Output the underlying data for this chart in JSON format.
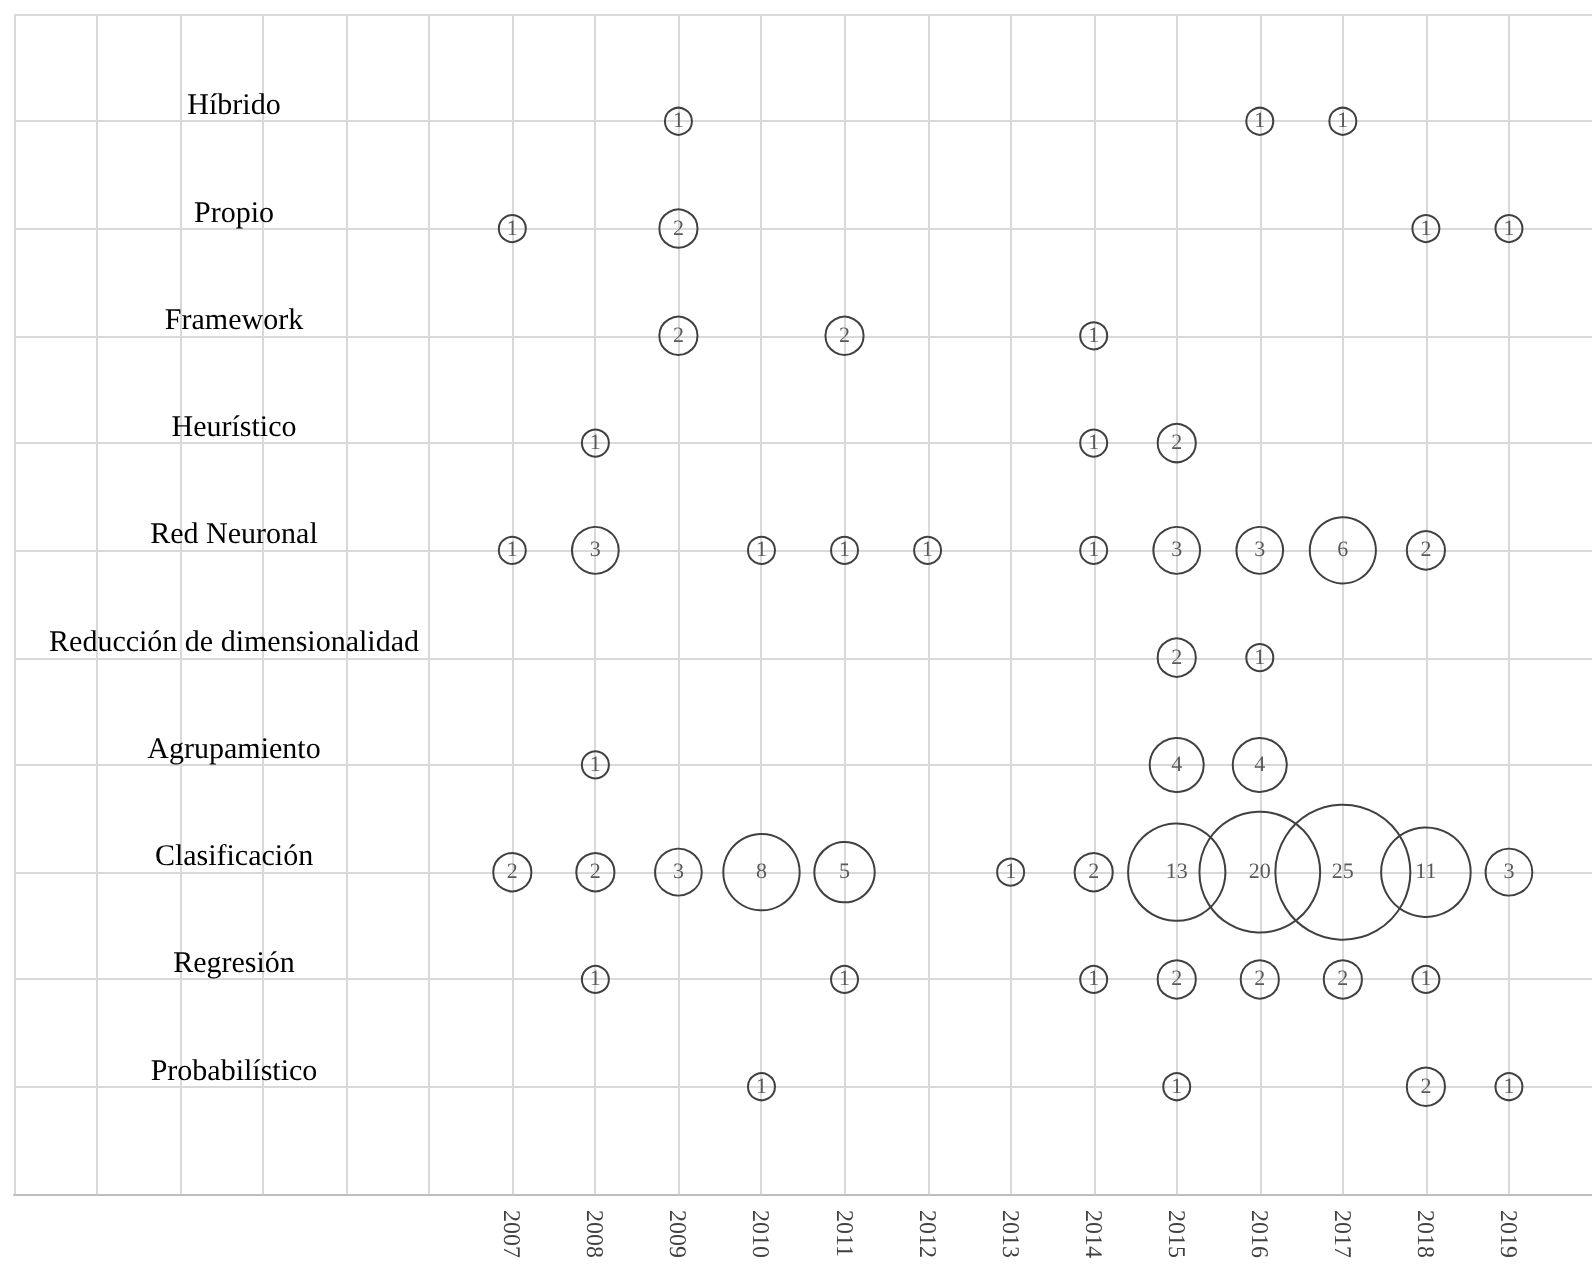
{
  "chart_data": {
    "type": "heatmap",
    "categories": [
      "2007",
      "2008",
      "2009",
      "2010",
      "2011",
      "2012",
      "2013",
      "2014",
      "2015",
      "2016",
      "2017",
      "2018",
      "2019"
    ],
    "y_categories": [
      "Híbrido",
      "Propio",
      "Framework",
      "Heurístico",
      "Red Neuronal",
      "Reducción de dimensionalidad",
      "Agrupamiento",
      "Clasificación",
      "Regresión",
      "Probabilístico"
    ],
    "cells": [
      [
        null,
        null,
        1,
        null,
        null,
        null,
        null,
        null,
        null,
        1,
        1,
        null,
        null
      ],
      [
        1,
        null,
        2,
        null,
        null,
        null,
        null,
        null,
        null,
        null,
        null,
        1,
        1
      ],
      [
        null,
        null,
        2,
        null,
        2,
        null,
        null,
        1,
        null,
        null,
        null,
        null,
        null
      ],
      [
        null,
        1,
        null,
        null,
        null,
        null,
        null,
        1,
        2,
        null,
        null,
        null,
        null
      ],
      [
        1,
        3,
        null,
        1,
        1,
        1,
        null,
        1,
        3,
        3,
        6,
        2,
        null
      ],
      [
        null,
        null,
        null,
        null,
        null,
        null,
        null,
        null,
        2,
        1,
        null,
        null,
        null
      ],
      [
        null,
        1,
        null,
        null,
        null,
        null,
        null,
        null,
        4,
        4,
        null,
        null,
        null
      ],
      [
        2,
        2,
        3,
        8,
        5,
        null,
        1,
        2,
        13,
        20,
        25,
        11,
        3
      ],
      [
        null,
        1,
        null,
        null,
        1,
        null,
        null,
        1,
        2,
        2,
        2,
        1,
        null
      ],
      [
        null,
        null,
        null,
        1,
        null,
        null,
        null,
        null,
        1,
        null,
        null,
        2,
        1
      ]
    ],
    "data_labels": true,
    "grid": true,
    "marker": "circle"
  }
}
